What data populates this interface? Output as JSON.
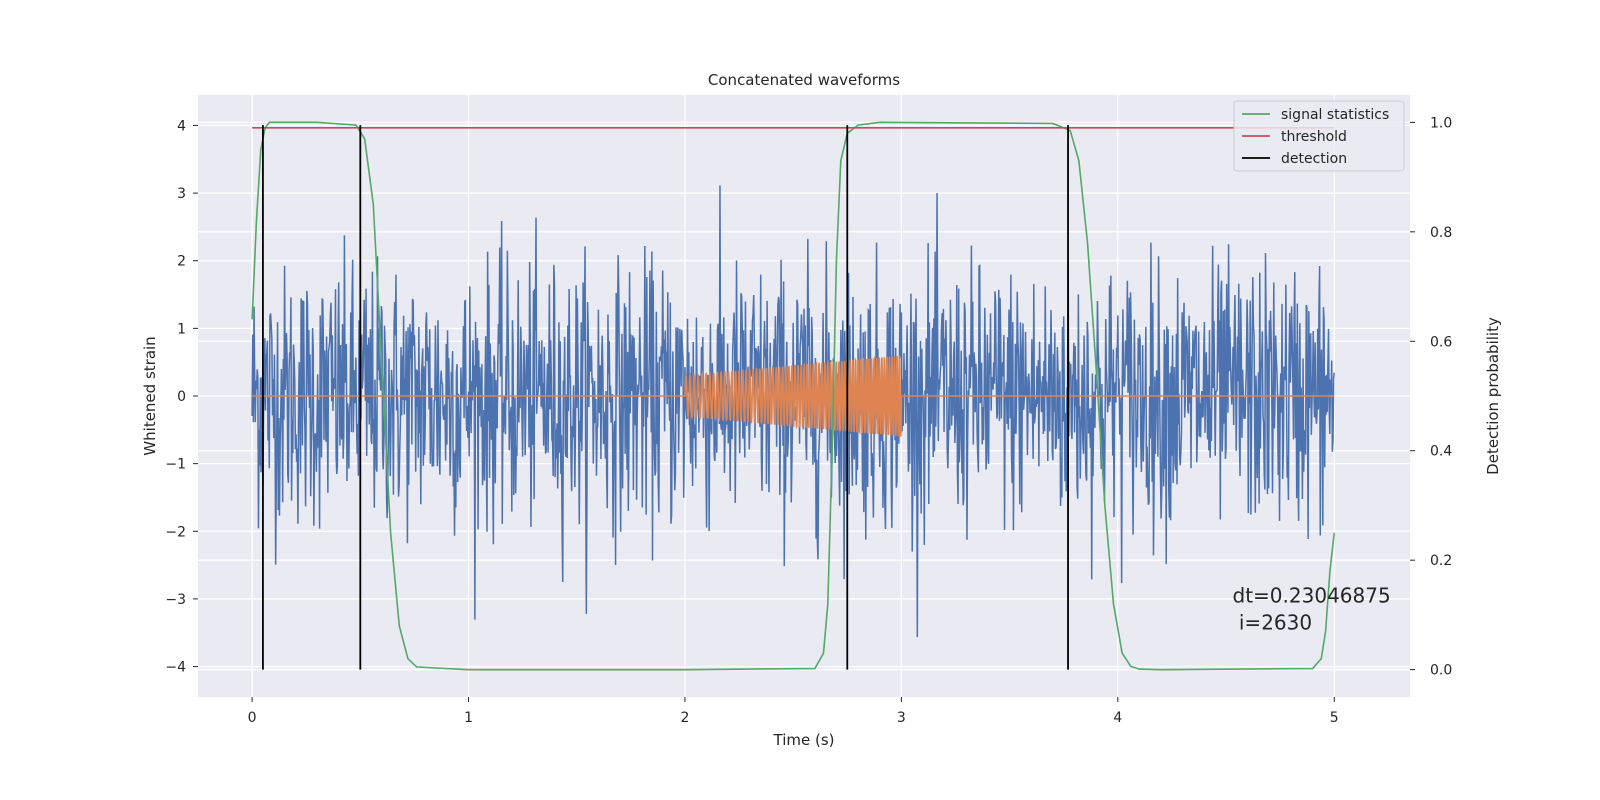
{
  "chart_data": {
    "type": "line",
    "title": "Concatenated waveforms",
    "xlabel": "Time (s)",
    "ylabel": "Whitened strain",
    "y2label": "Detection probability",
    "xlim": [
      -0.25,
      5.35
    ],
    "ylim": [
      -4.45,
      4.45
    ],
    "y2lim": [
      -0.05,
      1.05
    ],
    "xticks": [
      0,
      1,
      2,
      3,
      4,
      5
    ],
    "yticks": [
      -4,
      -3,
      -2,
      -1,
      0,
      1,
      2,
      3,
      4
    ],
    "y2ticks": [
      0.0,
      0.2,
      0.4,
      0.6,
      0.8,
      1.0
    ],
    "xtick_labels": [
      "0",
      "1",
      "2",
      "3",
      "4",
      "5"
    ],
    "ytick_labels": [
      "−4",
      "−3",
      "−2",
      "−1",
      "0",
      "1",
      "2",
      "3",
      "4"
    ],
    "y2tick_labels": [
      "0.0",
      "0.2",
      "0.4",
      "0.6",
      "0.8",
      "1.0"
    ],
    "grid": true,
    "legend_position": "top-right",
    "colors": {
      "strain": "#4c72b0",
      "waveform": "#dd8452",
      "signal_statistics": "#55a868",
      "threshold": "#c44e52",
      "detection": "#000000",
      "background": "#eaeaf2",
      "grid": "#ffffff"
    },
    "series": [
      {
        "name": "",
        "axis": "left",
        "description_kind": "noise",
        "x_range": [
          0,
          5
        ],
        "amplitude_envelope": 2.3,
        "color_key": "strain"
      },
      {
        "name": "",
        "axis": "left",
        "kind": "chirp",
        "x_range": [
          2.0,
          3.0
        ],
        "amplitude_start": 0.3,
        "amplitude_end": 0.6,
        "cycles": 70,
        "color_key": "waveform"
      },
      {
        "name": "signal statistics",
        "axis": "right",
        "x": [
          0,
          0.02,
          0.04,
          0.06,
          0.08,
          0.1,
          0.3,
          0.48,
          0.52,
          0.56,
          0.6,
          0.64,
          0.68,
          0.72,
          0.76,
          0.85,
          1.0,
          2.0,
          2.6,
          2.64,
          2.66,
          2.68,
          2.7,
          2.72,
          2.75,
          2.8,
          2.9,
          3.7,
          3.78,
          3.82,
          3.86,
          3.9,
          3.94,
          3.98,
          4.02,
          4.06,
          4.1,
          4.2,
          4.9,
          4.94,
          4.96,
          4.98,
          5.0
        ],
        "y": [
          0.64,
          0.82,
          0.95,
          0.99,
          1.0,
          1.0,
          1.0,
          0.995,
          0.97,
          0.85,
          0.55,
          0.25,
          0.08,
          0.02,
          0.005,
          0.003,
          0.0,
          0.0,
          0.002,
          0.03,
          0.12,
          0.4,
          0.75,
          0.93,
          0.98,
          0.995,
          1.0,
          0.998,
          0.985,
          0.93,
          0.78,
          0.55,
          0.3,
          0.12,
          0.03,
          0.006,
          0.001,
          0.0,
          0.002,
          0.02,
          0.07,
          0.18,
          0.25
        ],
        "color_key": "signal_statistics"
      },
      {
        "name": "threshold",
        "axis": "right",
        "x": [
          0,
          5
        ],
        "y": [
          0.99,
          0.99
        ],
        "color_key": "threshold"
      },
      {
        "name": "detection",
        "axis": "right",
        "kind": "vertical_lines",
        "x": [
          0.05,
          0.5,
          2.75,
          3.77
        ],
        "y_range": [
          0.0,
          0.995
        ],
        "color_key": "detection"
      }
    ],
    "annotation": {
      "line1": "dt=0.23046875",
      "line2": " i=2630",
      "x": 4.53,
      "y": -3.05
    }
  }
}
